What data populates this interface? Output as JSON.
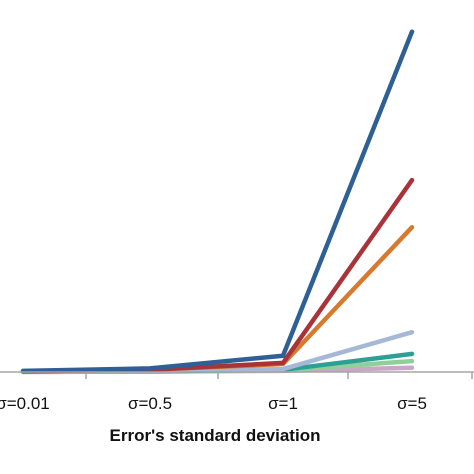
{
  "chart_data": {
    "type": "line",
    "title": "",
    "xlabel": "Error's standard deviation",
    "ylabel": "",
    "categories": [
      "σ=0.01",
      "σ=0.5",
      "σ=1",
      "σ=5"
    ],
    "ylim": [
      0,
      100
    ],
    "grid": false,
    "legend": "none",
    "series": [
      {
        "color": "#2e5f95",
        "values": [
          0.3,
          1.0,
          4.5,
          94.0
        ]
      },
      {
        "color": "#a8343a",
        "values": [
          0.2,
          0.6,
          2.5,
          53.0
        ]
      },
      {
        "color": "#d77a2e",
        "values": [
          0.2,
          0.6,
          2.2,
          40.0
        ]
      },
      {
        "color": "#a5b8d6",
        "values": [
          0.1,
          0.3,
          0.8,
          11.0
        ]
      },
      {
        "color": "#2e9f94",
        "values": [
          0.1,
          0.2,
          0.6,
          5.0
        ]
      },
      {
        "color": "#8fcf9a",
        "values": [
          0.1,
          0.2,
          0.5,
          3.0
        ]
      },
      {
        "color": "#c9a7c7",
        "values": [
          0.0,
          0.1,
          0.3,
          1.2
        ]
      }
    ]
  }
}
